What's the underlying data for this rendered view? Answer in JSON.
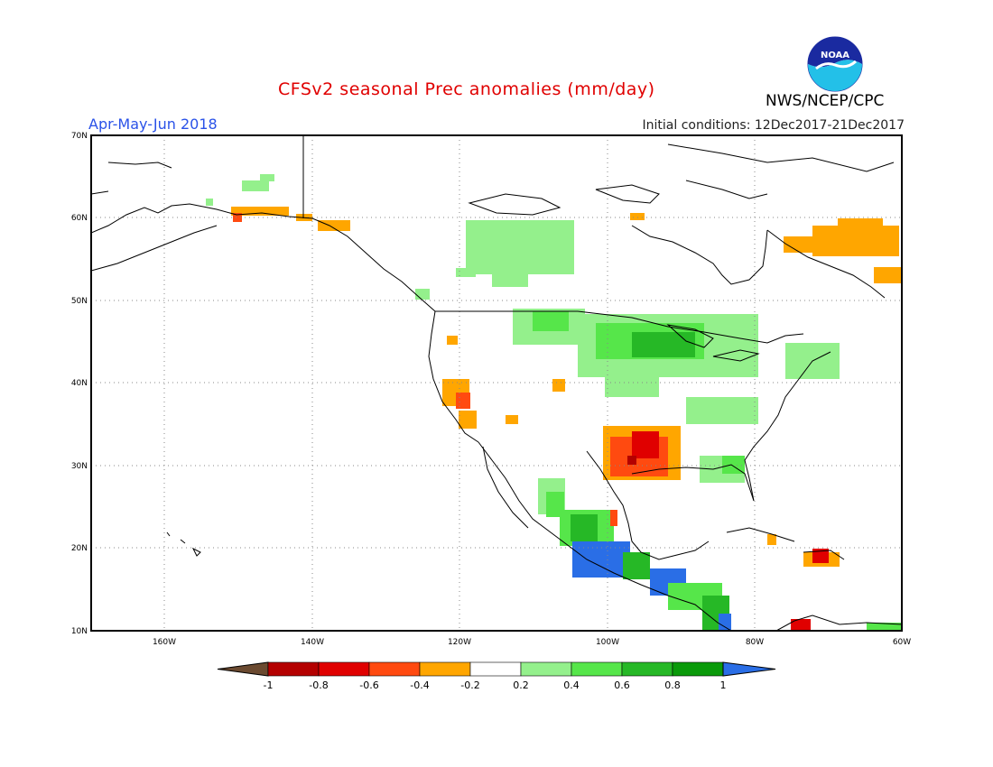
{
  "title": "CFSv2 seasonal Prec anomalies (mm/day)",
  "period": "Apr-May-Jun 2018",
  "initial_conditions": "Initial conditions: 12Dec2017-21Dec2017",
  "agency": "NWS/NCEP/CPC",
  "logo_text": "NOAA",
  "lat_labels": [
    "70N",
    "60N",
    "50N",
    "40N",
    "30N",
    "20N",
    "10N"
  ],
  "lon_labels": [
    "160W",
    "140W",
    "120W",
    "100W",
    "80W",
    "60W"
  ],
  "colorbar": {
    "labels": [
      "-1",
      "-0.8",
      "-0.6",
      "-0.4",
      "-0.2",
      "0.2",
      "0.4",
      "0.6",
      "0.8",
      "1"
    ],
    "colors": [
      "#6b4a30",
      "#b40000",
      "#e00000",
      "#ff4a10",
      "#ffa600",
      "#ffffff",
      "#94f08c",
      "#56e64a",
      "#26b826",
      "#0a9a0a",
      "#2a6ee6"
    ]
  }
}
